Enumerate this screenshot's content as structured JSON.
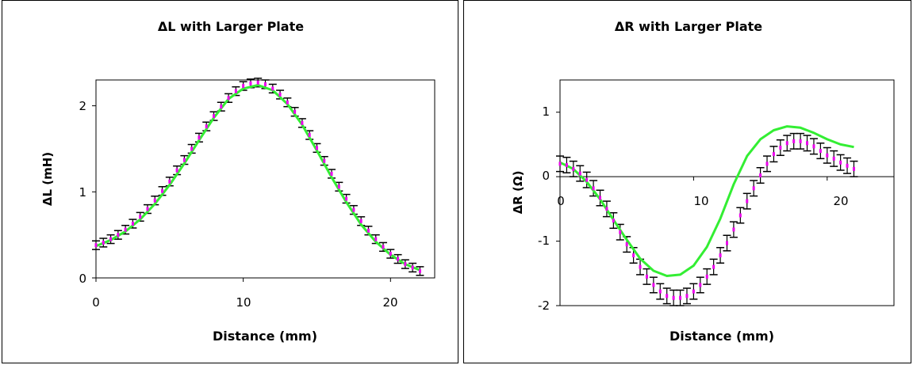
{
  "charts": [
    {
      "title": "ΔL with Larger Plate",
      "xlabel": "Distance (mm)",
      "ylabel": "ΔL (mH)",
      "xticks": [
        "0",
        "10",
        "20"
      ],
      "yticks": [
        "0",
        "1",
        "2"
      ]
    },
    {
      "title": "ΔR with Larger Plate",
      "xlabel": "Distance (mm)",
      "ylabel": "ΔR (Ω)",
      "xticks": [
        "0",
        "10",
        "20"
      ],
      "yticks": [
        "-2",
        "-1",
        "0",
        "1"
      ]
    }
  ],
  "colors": {
    "fit_line": "#33ee33",
    "data_marker": "#ee00ee",
    "error_bar": "#000000"
  },
  "chart_data": [
    {
      "type": "scatter",
      "title": "ΔL with Larger Plate",
      "xlabel": "Distance (mm)",
      "ylabel": "ΔL (mH)",
      "xlim": [
        0,
        23
      ],
      "ylim": [
        0,
        2.3
      ],
      "grid": false,
      "series": [
        {
          "kind": "data_with_error_bars",
          "x": [
            0,
            0.5,
            1,
            1.5,
            2,
            2.5,
            3,
            3.5,
            4,
            4.5,
            5,
            5.5,
            6,
            6.5,
            7,
            7.5,
            8,
            8.5,
            9,
            9.5,
            10,
            10.5,
            11,
            11.5,
            12,
            12.5,
            13,
            13.5,
            14,
            14.5,
            15,
            15.5,
            16,
            16.5,
            17,
            17.5,
            18,
            18.5,
            19,
            19.5,
            20,
            20.5,
            21,
            21.5,
            22
          ],
          "y": [
            0.38,
            0.41,
            0.45,
            0.5,
            0.56,
            0.63,
            0.71,
            0.8,
            0.9,
            1.01,
            1.12,
            1.25,
            1.37,
            1.5,
            1.63,
            1.76,
            1.88,
            1.99,
            2.09,
            2.17,
            2.23,
            2.26,
            2.27,
            2.25,
            2.2,
            2.13,
            2.04,
            1.93,
            1.8,
            1.66,
            1.51,
            1.36,
            1.21,
            1.06,
            0.92,
            0.79,
            0.66,
            0.55,
            0.45,
            0.36,
            0.28,
            0.22,
            0.16,
            0.12,
            0.08
          ],
          "error": 0.05
        },
        {
          "kind": "fit_line",
          "x": [
            0,
            1,
            2,
            3,
            4,
            5,
            6,
            7,
            8,
            9,
            10,
            11,
            12,
            13,
            14,
            15,
            16,
            17,
            18,
            19,
            20,
            21,
            22
          ],
          "y": [
            0.37,
            0.44,
            0.54,
            0.68,
            0.86,
            1.08,
            1.33,
            1.6,
            1.86,
            2.08,
            2.2,
            2.24,
            2.18,
            2.02,
            1.78,
            1.48,
            1.17,
            0.88,
            0.62,
            0.42,
            0.27,
            0.16,
            0.09
          ]
        }
      ]
    },
    {
      "type": "scatter",
      "title": "ΔR with Larger Plate",
      "xlabel": "Distance (mm)",
      "ylabel": "ΔR (Ω)",
      "xlim": [
        0,
        25
      ],
      "ylim": [
        -2,
        1.5
      ],
      "grid": false,
      "series": [
        {
          "kind": "data_with_error_bars",
          "x": [
            0,
            0.5,
            1,
            1.5,
            2,
            2.5,
            3,
            3.5,
            4,
            4.5,
            5,
            5.5,
            6,
            6.5,
            7,
            7.5,
            8,
            8.5,
            9,
            9.5,
            10,
            10.5,
            11,
            11.5,
            12,
            12.5,
            13,
            13.5,
            14,
            14.5,
            15,
            15.5,
            16,
            16.5,
            17,
            17.5,
            18,
            18.5,
            19,
            19.5,
            20,
            20.5,
            21,
            21.5,
            22
          ],
          "y": [
            0.2,
            0.18,
            0.12,
            0.05,
            -0.05,
            -0.18,
            -0.33,
            -0.5,
            -0.68,
            -0.86,
            -1.05,
            -1.22,
            -1.4,
            -1.55,
            -1.68,
            -1.78,
            -1.85,
            -1.88,
            -1.88,
            -1.85,
            -1.78,
            -1.68,
            -1.55,
            -1.4,
            -1.22,
            -1.03,
            -0.82,
            -0.6,
            -0.38,
            -0.18,
            0.02,
            0.2,
            0.35,
            0.45,
            0.52,
            0.55,
            0.55,
            0.52,
            0.47,
            0.4,
            0.33,
            0.28,
            0.22,
            0.17,
            0.12
          ],
          "error": 0.12
        },
        {
          "kind": "fit_line",
          "x": [
            0,
            1,
            2,
            3,
            4,
            5,
            6,
            7,
            8,
            9,
            10,
            11,
            12,
            13,
            14,
            15,
            16,
            17,
            18,
            19,
            20,
            21,
            22
          ],
          "y": [
            0.22,
            0.12,
            -0.08,
            -0.35,
            -0.67,
            -0.98,
            -1.27,
            -1.46,
            -1.54,
            -1.52,
            -1.38,
            -1.09,
            -0.65,
            -0.12,
            0.32,
            0.58,
            0.72,
            0.78,
            0.76,
            0.68,
            0.58,
            0.5,
            0.46
          ]
        }
      ]
    }
  ]
}
